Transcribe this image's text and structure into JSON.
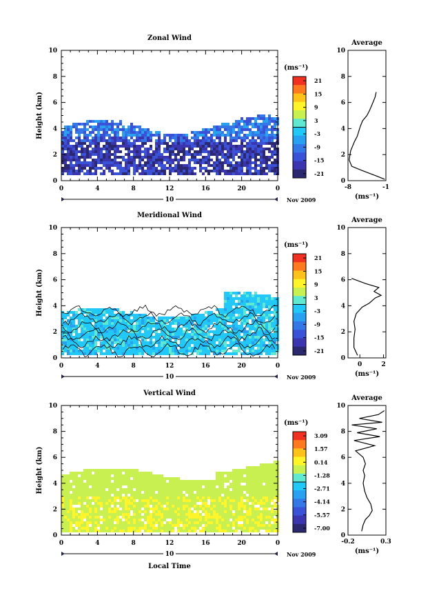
{
  "chart_data": [
    {
      "type": "heatmap",
      "title": "Zonal Wind",
      "ylabel": "Height (km)",
      "xlabel": "",
      "x_ticks": [
        "0",
        "4",
        "8",
        "12",
        "16",
        "20",
        "0"
      ],
      "y_ticks": [
        "0",
        "2",
        "4",
        "6",
        "8",
        "10"
      ],
      "ylim": [
        0,
        10
      ],
      "xlim": [
        0,
        24
      ],
      "date_marker": "10",
      "date_label": "Nov 2009",
      "colorbar": {
        "unit": "(ms⁻¹)",
        "ticks": [
          "21",
          "15",
          "9",
          "3",
          "-3",
          "-9",
          "-15",
          "-21"
        ],
        "colors": [
          "#f03020",
          "#ff7a1e",
          "#ffc21a",
          "#fff52a",
          "#c8f050",
          "#60e8d0",
          "#22c8f8",
          "#2aa0f0",
          "#3478e8",
          "#3a52d8",
          "#3b35b0",
          "#2c2870"
        ]
      },
      "data_description": "Westward (negative) zonal wind, mostly -5 to -15 ms-1 between 0.5 and 5 km",
      "average_profile": {
        "title": "Average",
        "x_ticks": [
          "-8",
          "-1"
        ],
        "xlim": [
          -8,
          -1
        ],
        "xlabel": "(ms⁻¹)",
        "y_ticks": [
          "0",
          "2",
          "4",
          "6",
          "8",
          "10"
        ],
        "profile": [
          [
            -1.2,
            0.1
          ],
          [
            -3,
            0.4
          ],
          [
            -5.5,
            0.8
          ],
          [
            -7.3,
            1.1
          ],
          [
            -7.8,
            1.6
          ],
          [
            -7.5,
            2.3
          ],
          [
            -6.8,
            3.0
          ],
          [
            -6.3,
            3.4
          ],
          [
            -6.0,
            3.8
          ],
          [
            -5.7,
            4.2
          ],
          [
            -5.3,
            4.6
          ],
          [
            -4.5,
            5.0
          ],
          [
            -4.0,
            5.4
          ],
          [
            -3.5,
            5.9
          ],
          [
            -3.0,
            6.4
          ],
          [
            -2.8,
            6.8
          ]
        ]
      }
    },
    {
      "type": "heatmap",
      "title": "Meridional Wind",
      "ylabel": "Height (km)",
      "xlabel": "",
      "x_ticks": [
        "0",
        "4",
        "8",
        "12",
        "16",
        "20",
        "0"
      ],
      "y_ticks": [
        "0",
        "2",
        "4",
        "6",
        "8",
        "10"
      ],
      "ylim": [
        0,
        10
      ],
      "xlim": [
        0,
        24
      ],
      "date_marker": "10",
      "date_label": "Nov 2009",
      "colorbar": {
        "unit": "(ms⁻¹)",
        "ticks": [
          "21",
          "15",
          "9",
          "3",
          "-3",
          "-9",
          "-15",
          "-21"
        ],
        "colors": [
          "#f03020",
          "#ff7a1e",
          "#ffc21a",
          "#fff52a",
          "#c8f050",
          "#60e8d0",
          "#22c8f8",
          "#2aa0f0",
          "#3478e8",
          "#3a52d8",
          "#3b35b0",
          "#2c2870"
        ]
      },
      "data_description": "Weak meridional wind near 0 to +3 ms-1 between 0.3 and 6 km",
      "average_profile": {
        "title": "Average",
        "x_ticks": [
          "0",
          "2"
        ],
        "xlim": [
          -1,
          2.2
        ],
        "xlabel": "(ms⁻¹)",
        "y_ticks": [
          "0",
          "2",
          "4",
          "6",
          "8",
          "10"
        ],
        "profile": [
          [
            -0.2,
            0.2
          ],
          [
            -0.5,
            0.8
          ],
          [
            -0.5,
            1.5
          ],
          [
            -0.4,
            2.2
          ],
          [
            -0.5,
            2.8
          ],
          [
            -0.3,
            3.4
          ],
          [
            0.2,
            3.9
          ],
          [
            0.8,
            4.2
          ],
          [
            1.3,
            4.6
          ],
          [
            1.8,
            4.8
          ],
          [
            1.2,
            5.1
          ],
          [
            1.6,
            5.4
          ],
          [
            0.5,
            5.7
          ],
          [
            -0.7,
            6.1
          ]
        ]
      }
    },
    {
      "type": "heatmap",
      "title": "Vertical Wind",
      "ylabel": "Height (km)",
      "xlabel": "Local Time",
      "x_ticks": [
        "0",
        "4",
        "8",
        "12",
        "16",
        "20",
        "0"
      ],
      "y_ticks": [
        "0",
        "2",
        "4",
        "6",
        "8",
        "10"
      ],
      "ylim": [
        0,
        10
      ],
      "xlim": [
        0,
        24
      ],
      "date_marker": "10",
      "date_label": "Nov 2009",
      "colorbar": {
        "unit": "(ms⁻¹)",
        "ticks": [
          "3.09",
          "1.57",
          "0.14",
          "-1.28",
          "-2.71",
          "-4.14",
          "-5.57",
          "-7.00"
        ],
        "colors": [
          "#f03020",
          "#ff7a1e",
          "#ffc21a",
          "#fff52a",
          "#c8f050",
          "#60e8d0",
          "#22c8f8",
          "#2aa0f0",
          "#3478e8",
          "#3a52d8",
          "#3b35b0",
          "#2c2870"
        ]
      },
      "data_description": "Vertical wind near 0 to +1 ms-1 between 0.3 and 6 km",
      "average_profile": {
        "title": "Average",
        "x_ticks": [
          "-0.2",
          "0.3"
        ],
        "xlim": [
          -0.2,
          0.3
        ],
        "xlabel": "(ms⁻¹)",
        "y_ticks": [
          "0",
          "2",
          "4",
          "6",
          "8",
          "10"
        ],
        "profile": [
          [
            -0.02,
            0.3
          ],
          [
            0.0,
            0.8
          ],
          [
            0.03,
            1.2
          ],
          [
            0.08,
            1.5
          ],
          [
            0.12,
            1.9
          ],
          [
            0.1,
            2.4
          ],
          [
            0.05,
            2.9
          ],
          [
            0.02,
            3.4
          ],
          [
            0.0,
            4.0
          ],
          [
            0.02,
            4.6
          ],
          [
            0.0,
            5.0
          ],
          [
            0.03,
            5.5
          ],
          [
            0.0,
            6.0
          ],
          [
            -0.1,
            6.5
          ],
          [
            0.15,
            6.9
          ],
          [
            -0.12,
            7.3
          ],
          [
            0.22,
            7.6
          ],
          [
            -0.08,
            7.9
          ],
          [
            0.18,
            8.2
          ],
          [
            -0.15,
            8.5
          ],
          [
            0.25,
            8.7
          ],
          [
            -0.05,
            9.0
          ],
          [
            0.2,
            9.3
          ],
          [
            0.28,
            9.6
          ]
        ]
      }
    }
  ]
}
